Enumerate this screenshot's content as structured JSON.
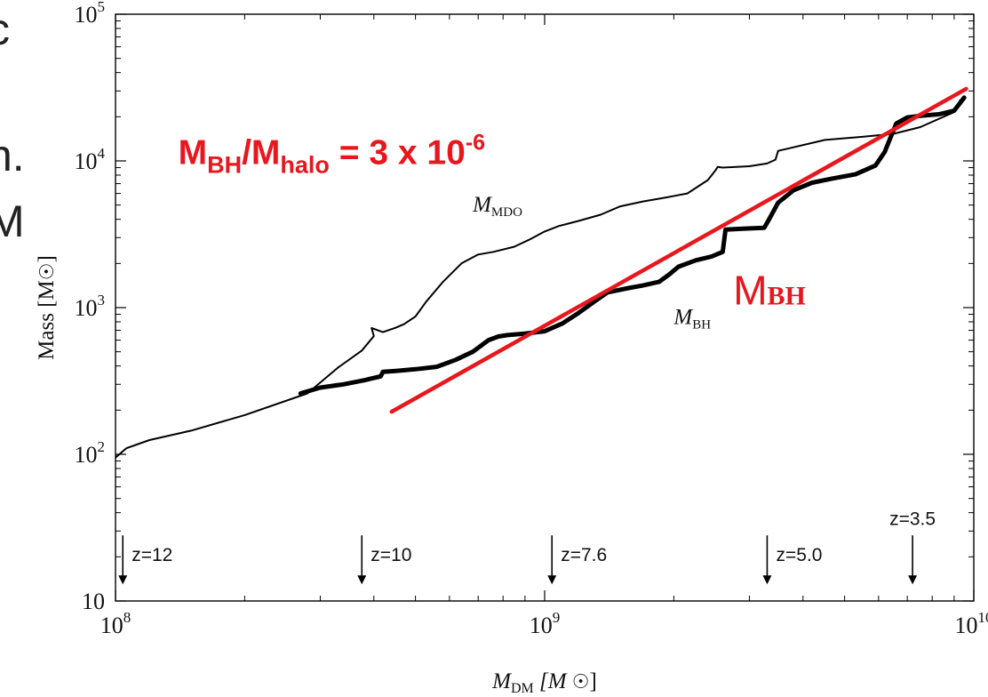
{
  "chart_data": {
    "type": "line",
    "xlabel_main": "M",
    "xlabel_sub": "DM",
    "xlabel_unit": "[M",
    "xlabel_unit_close": "]",
    "ylabel": "Mass [M",
    "ylabel_close": "]",
    "xlim": [
      100000000,
      10000000000
    ],
    "ylim": [
      10,
      100000
    ],
    "log_x": true,
    "log_y": true,
    "grid": false,
    "x_ticks": [
      {
        "value": 100000000,
        "base": "10",
        "exp": "8"
      },
      {
        "value": 1000000000,
        "base": "10",
        "exp": "9"
      },
      {
        "value": 10000000000,
        "base": "10",
        "exp": "10"
      }
    ],
    "y_ticks": [
      {
        "value": 10,
        "base": "10",
        "exp": ""
      },
      {
        "value": 100,
        "base": "10",
        "exp": "2"
      },
      {
        "value": 1000,
        "base": "10",
        "exp": "3"
      },
      {
        "value": 10000,
        "base": "10",
        "exp": "4"
      },
      {
        "value": 100000,
        "base": "10",
        "exp": "5"
      }
    ],
    "series": [
      {
        "key": "mdo",
        "label_main": "M",
        "label_sub": "MDO",
        "label_at": [
          680000000,
          4500
        ],
        "color": "#000000",
        "width": 2,
        "x": [
          100000000,
          106000000,
          120000000,
          150000000,
          200000000,
          280000000,
          330000000,
          375000000,
          400000000,
          395000000,
          420000000,
          450000000,
          470000000,
          500000000,
          530000000,
          580000000,
          640000000,
          700000000,
          760000000,
          850000000,
          920000000,
          1000000000,
          1080000000,
          1200000000,
          1350000000,
          1500000000,
          1700000000,
          1900000000,
          2150000000,
          2400000000,
          2500000000,
          2530000000,
          2600000000,
          3000000000,
          3300000000,
          3450000000,
          3500000000,
          4500000000,
          5500000000,
          6500000000,
          7500000000,
          9000000000,
          9300000000
        ],
        "y": [
          95,
          110,
          125,
          145,
          185,
          260,
          390,
          510,
          640,
          725,
          680,
          730,
          770,
          870,
          1100,
          1500,
          2000,
          2300,
          2400,
          2600,
          2900,
          3300,
          3600,
          3900,
          4300,
          4900,
          5300,
          5600,
          6000,
          7400,
          8600,
          9100,
          9000,
          9200,
          9600,
          10200,
          11700,
          13900,
          14600,
          15300,
          17000,
          21500,
          26000
        ]
      },
      {
        "key": "bh",
        "label_main": "M",
        "label_sub": "BH",
        "label_at": [
          2000000000,
          770
        ],
        "color": "#000000",
        "width": 5,
        "x": [
          270000000,
          300000000,
          340000000,
          380000000,
          415000000,
          420000000,
          450000000,
          500000000,
          560000000,
          620000000,
          680000000,
          740000000,
          780000000,
          820000000,
          900000000,
          1000000000,
          1100000000,
          1200000000,
          1300000000,
          1400000000,
          1550000000,
          1700000000,
          1850000000,
          1950000000,
          2050000000,
          2250000000,
          2450000000,
          2600000000,
          2640000000,
          2900000000,
          3100000000,
          3250000000,
          3350000000,
          3500000000,
          3800000000,
          4200000000,
          4700000000,
          5300000000,
          5900000000,
          6200000000,
          6400000000,
          6600000000,
          7000000000,
          7500000000,
          8300000000,
          9000000000,
          9500000000
        ],
        "y": [
          260,
          285,
          300,
          320,
          340,
          365,
          370,
          380,
          395,
          440,
          500,
          600,
          635,
          650,
          665,
          690,
          780,
          920,
          1090,
          1270,
          1350,
          1420,
          1500,
          1680,
          1900,
          2100,
          2230,
          2400,
          3400,
          3450,
          3480,
          3500,
          4100,
          5200,
          6300,
          7100,
          7600,
          8100,
          9300,
          11500,
          14500,
          18000,
          19800,
          20300,
          20800,
          22000,
          27000
        ]
      }
    ],
    "fit_line": {
      "label_main": "M",
      "label_sub": "BH",
      "label_at": [
        2750000000,
        1050
      ],
      "color": "#e8171d",
      "x": [
        440000000,
        9600000000
      ],
      "y": [
        195,
        31000
      ]
    },
    "annotation": {
      "main_1": "M",
      "sub_1": "BH",
      "main_2": "/M",
      "sub_2": "halo",
      "main_3": " = 3 x 10",
      "sup": "-6",
      "at": [
        140000000,
        9500
      ]
    },
    "redshift_markers": [
      {
        "label": "z=12",
        "x": 104000000
      },
      {
        "label": "z=10",
        "x": 375000000
      },
      {
        "label": "z=7.6",
        "x": 1040000000
      },
      {
        "label": "z=5.0",
        "x": 3300000000
      },
      {
        "label": "z=3.5",
        "x": 7200000000
      }
    ]
  }
}
